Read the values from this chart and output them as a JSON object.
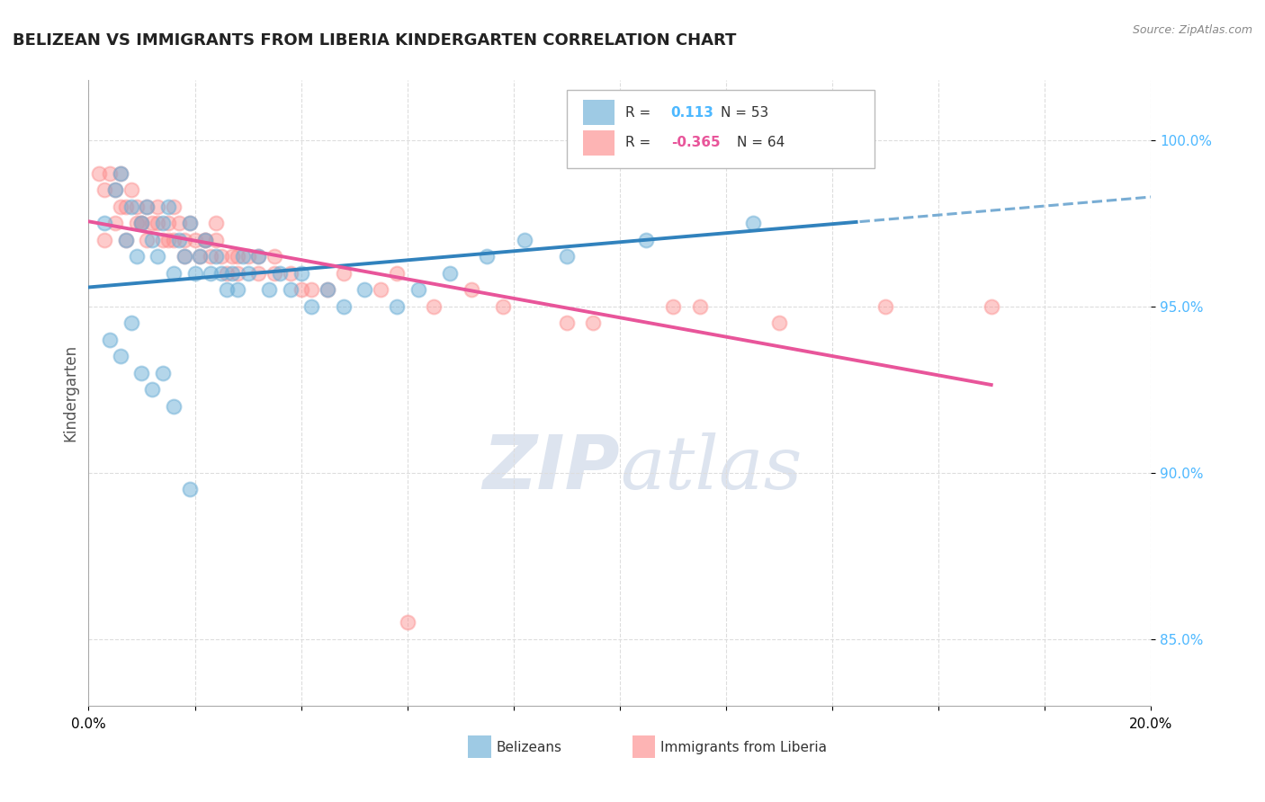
{
  "title": "BELIZEAN VS IMMIGRANTS FROM LIBERIA KINDERGARTEN CORRELATION CHART",
  "source": "Source: ZipAtlas.com",
  "ylabel": "Kindergarten",
  "y_ticks": [
    85.0,
    90.0,
    95.0,
    100.0
  ],
  "y_tick_labels": [
    "85.0%",
    "90.0%",
    "95.0%",
    "100.0%"
  ],
  "x_range": [
    0.0,
    20.0
  ],
  "y_range": [
    83.0,
    101.8
  ],
  "blue_r": "0.113",
  "blue_n": "53",
  "pink_r": "-0.365",
  "pink_n": "64",
  "blue_color": "#6baed6",
  "pink_color": "#fc8d8d",
  "blue_line_color": "#3182bd",
  "pink_line_color": "#e8559a",
  "legend_label_blue": "Belizeans",
  "legend_label_pink": "Immigrants from Liberia",
  "blue_scatter_x": [
    0.3,
    0.5,
    0.6,
    0.7,
    0.8,
    0.9,
    1.0,
    1.1,
    1.2,
    1.3,
    1.4,
    1.5,
    1.6,
    1.7,
    1.8,
    1.9,
    2.0,
    2.1,
    2.2,
    2.3,
    2.4,
    2.5,
    2.6,
    2.7,
    2.8,
    2.9,
    3.0,
    3.2,
    3.4,
    3.6,
    3.8,
    4.0,
    4.2,
    4.5,
    4.8,
    5.2,
    5.8,
    6.2,
    6.8,
    7.5,
    8.2,
    9.0,
    10.5,
    12.5,
    0.4,
    0.6,
    0.8,
    1.0,
    1.2,
    1.4,
    1.6,
    1.9,
    14.5
  ],
  "blue_scatter_y": [
    97.5,
    98.5,
    99.0,
    97.0,
    98.0,
    96.5,
    97.5,
    98.0,
    97.0,
    96.5,
    97.5,
    98.0,
    96.0,
    97.0,
    96.5,
    97.5,
    96.0,
    96.5,
    97.0,
    96.0,
    96.5,
    96.0,
    95.5,
    96.0,
    95.5,
    96.5,
    96.0,
    96.5,
    95.5,
    96.0,
    95.5,
    96.0,
    95.0,
    95.5,
    95.0,
    95.5,
    95.0,
    95.5,
    96.0,
    96.5,
    97.0,
    96.5,
    97.0,
    97.5,
    94.0,
    93.5,
    94.5,
    93.0,
    92.5,
    93.0,
    92.0,
    89.5,
    100.0
  ],
  "pink_scatter_x": [
    0.2,
    0.3,
    0.4,
    0.5,
    0.6,
    0.7,
    0.8,
    0.9,
    1.0,
    1.1,
    1.2,
    1.3,
    1.4,
    1.5,
    1.6,
    1.7,
    1.8,
    1.9,
    2.0,
    2.1,
    2.2,
    2.3,
    2.4,
    2.5,
    2.6,
    2.7,
    2.8,
    3.0,
    3.2,
    3.5,
    3.8,
    4.2,
    4.8,
    5.5,
    6.5,
    7.8,
    9.5,
    11.5,
    0.3,
    0.5,
    0.7,
    0.9,
    1.1,
    1.3,
    1.5,
    1.8,
    2.2,
    2.8,
    3.5,
    4.5,
    5.8,
    7.2,
    9.0,
    11.0,
    13.0,
    15.0,
    17.0,
    0.6,
    1.0,
    1.6,
    2.4,
    3.2,
    4.0,
    6.0
  ],
  "pink_scatter_y": [
    99.0,
    98.5,
    99.0,
    98.5,
    99.0,
    98.0,
    98.5,
    98.0,
    97.5,
    98.0,
    97.5,
    98.0,
    97.0,
    97.5,
    97.0,
    97.5,
    97.0,
    97.5,
    97.0,
    96.5,
    97.0,
    96.5,
    97.0,
    96.5,
    96.0,
    96.5,
    96.0,
    96.5,
    96.0,
    96.5,
    96.0,
    95.5,
    96.0,
    95.5,
    95.0,
    95.0,
    94.5,
    95.0,
    97.0,
    97.5,
    97.0,
    97.5,
    97.0,
    97.5,
    97.0,
    96.5,
    97.0,
    96.5,
    96.0,
    95.5,
    96.0,
    95.5,
    94.5,
    95.0,
    94.5,
    95.0,
    95.0,
    98.0,
    97.5,
    98.0,
    97.5,
    96.5,
    95.5,
    85.5
  ],
  "watermark_zip": "ZIP",
  "watermark_atlas": "atlas",
  "watermark_color": "#dde4ef",
  "background_color": "#ffffff",
  "grid_color": "#dddddd"
}
